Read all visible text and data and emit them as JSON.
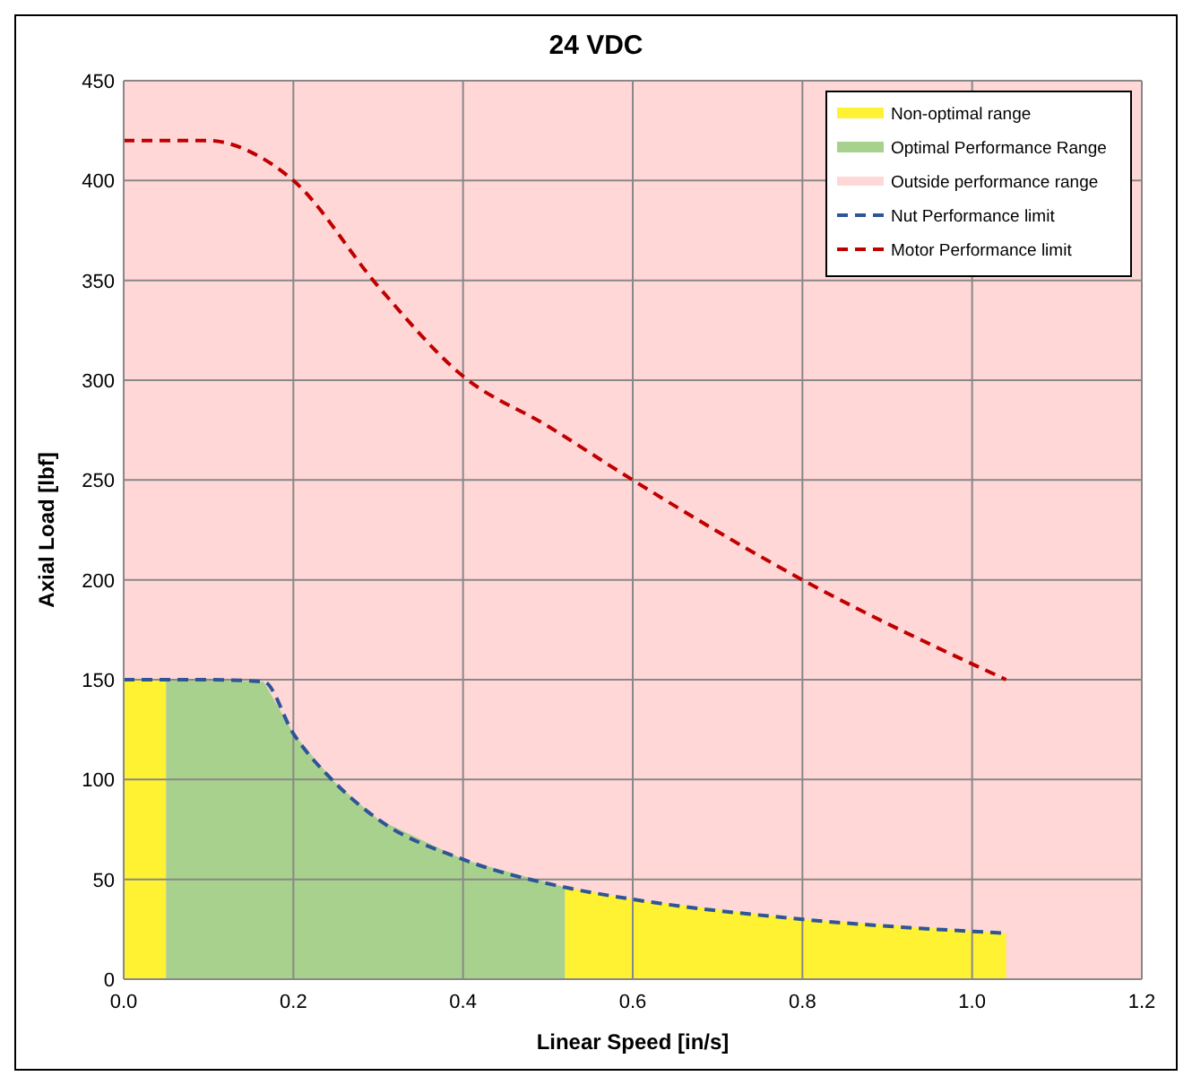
{
  "chart_data": {
    "type": "area",
    "title": "24 VDC",
    "xlabel": "Linear Speed [in/s]",
    "ylabel": "Axial Load [lbf]",
    "xlim": [
      0,
      1.2
    ],
    "ylim": [
      0,
      450
    ],
    "xticks": [
      {
        "value": 0,
        "label": "0.0"
      },
      {
        "value": 0.2,
        "label": "0.2"
      },
      {
        "value": 0.4,
        "label": "0.4"
      },
      {
        "value": 0.6,
        "label": "0.6"
      },
      {
        "value": 0.8,
        "label": "0.8"
      },
      {
        "value": 1,
        "label": "1.0"
      },
      {
        "value": 1.2,
        "label": "1.2"
      }
    ],
    "yticks": [
      0,
      50,
      100,
      150,
      200,
      250,
      300,
      350,
      400,
      450
    ],
    "grid": true,
    "legend": "top right",
    "bands": [
      {
        "axis": "x",
        "from": 0,
        "to": 1.2,
        "label": "Outside performance range",
        "color": "#ffd7d7"
      }
    ],
    "series": [
      {
        "name": "Non-optimal range",
        "color": "#fff232",
        "x": [
          0,
          0.05
        ],
        "values": [
          150,
          150
        ]
      },
      {
        "color": "#fff232",
        "x": [
          0.52,
          0.6,
          0.8,
          1.04
        ],
        "values": [
          46,
          40,
          30,
          23
        ]
      },
      {
        "name": "Optimal Performance Range",
        "color": "#a9d18e",
        "x": [
          0.05,
          0.1,
          0.165,
          0.2,
          0.25,
          0.3,
          0.4,
          0.52
        ],
        "values": [
          150,
          150,
          149,
          123,
          98,
          80,
          60,
          46
        ]
      },
      {
        "name": "Nut Performance limit",
        "type": "line",
        "line_style": "dashed",
        "color": "#2f5597",
        "x": [
          0,
          0.1,
          0.165,
          0.2,
          0.25,
          0.3,
          0.4,
          0.52,
          0.6,
          0.8,
          1.04
        ],
        "values": [
          150,
          150,
          149,
          123,
          98,
          80,
          60,
          46,
          40,
          30,
          23
        ]
      },
      {
        "name": "Motor Performance limit",
        "type": "line",
        "line_style": "dashed",
        "color": "#c00000",
        "x": [
          0,
          0.1,
          0.16,
          0.2,
          0.3,
          0.4,
          0.5,
          0.6,
          0.8,
          1.04
        ],
        "values": [
          420,
          420,
          412,
          400,
          347,
          302,
          277,
          250,
          200,
          150
        ]
      }
    ]
  }
}
